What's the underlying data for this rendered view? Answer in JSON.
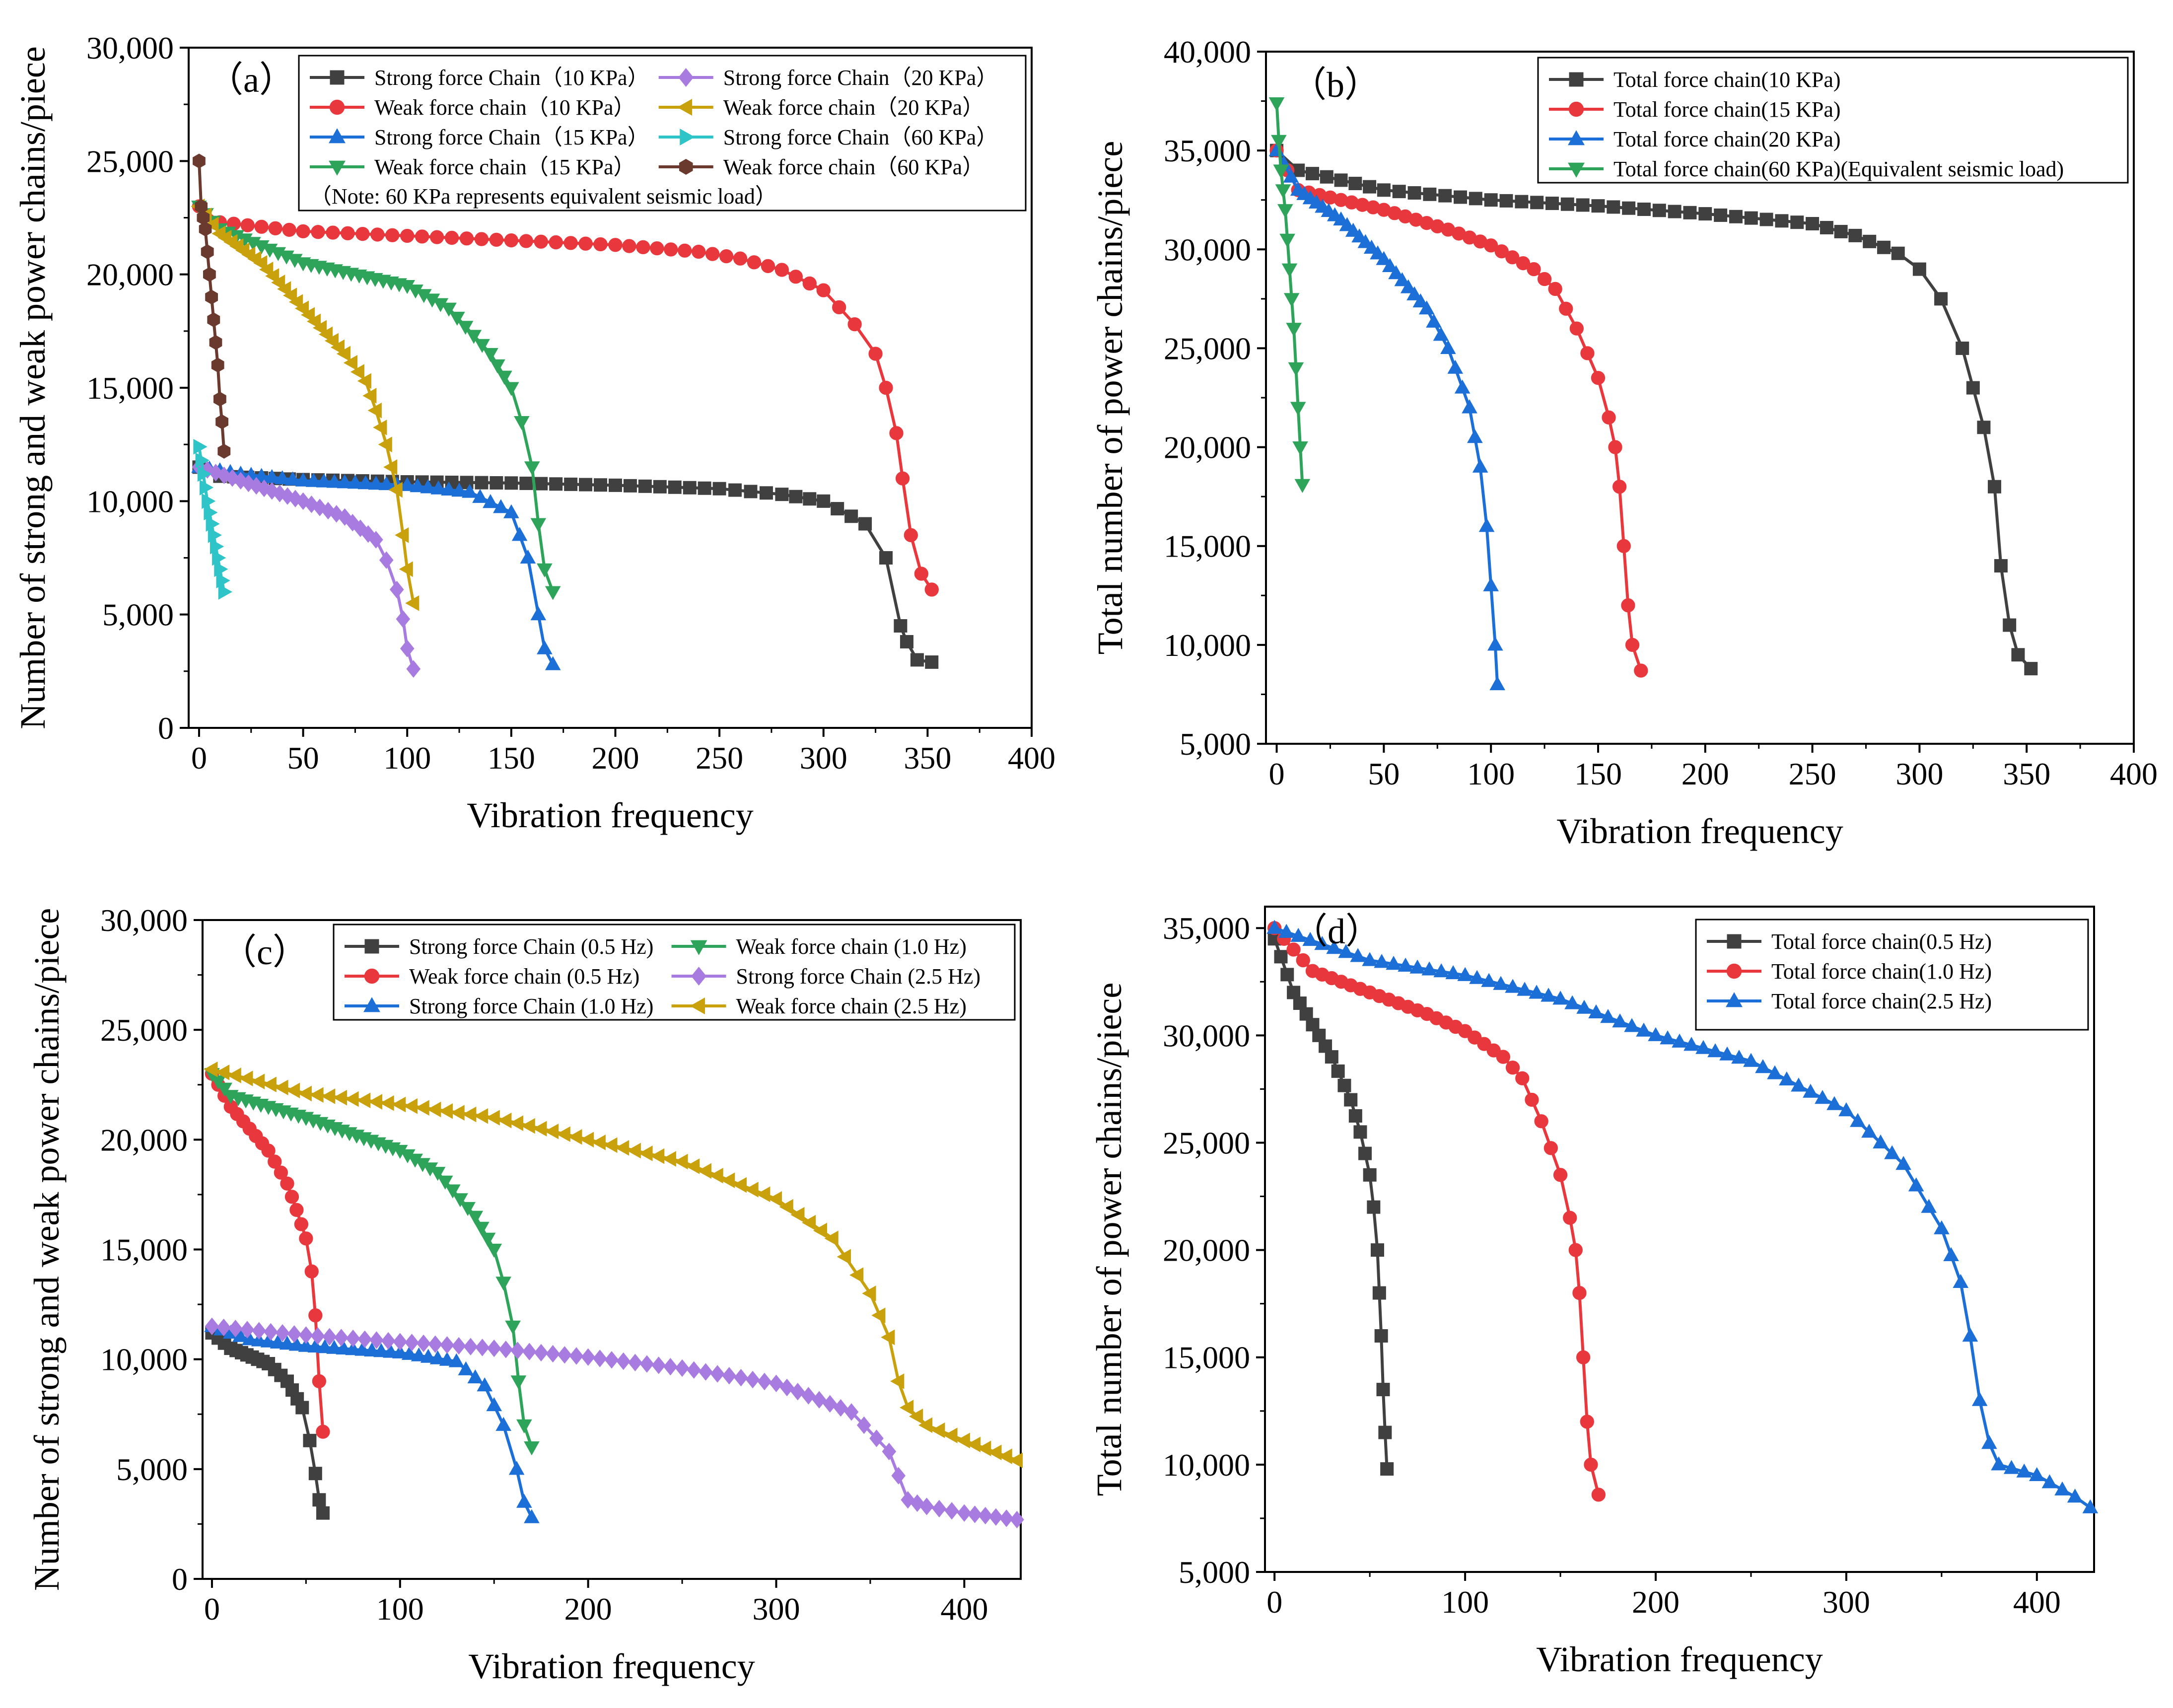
{
  "figure": {
    "panels": [
      "a",
      "b",
      "c",
      "d"
    ]
  },
  "chart_data": [
    {
      "id": "a",
      "type": "line",
      "title": "",
      "panel_label": "（a）",
      "xlabel": "Vibration frequency",
      "ylabel": "Number of strong and weak power chains/piece",
      "xlim": [
        -5,
        400
      ],
      "ylim": [
        0,
        30000
      ],
      "xticks": [
        0,
        50,
        100,
        150,
        200,
        250,
        300,
        350,
        400
      ],
      "yticks": [
        0,
        5000,
        10000,
        15000,
        20000,
        25000,
        30000
      ],
      "xtick_labels": [
        "0",
        "50",
        "100",
        "150",
        "200",
        "250",
        "300",
        "350",
        "400"
      ],
      "ytick_labels": [
        "0",
        "5,000",
        "10,000",
        "15,000",
        "20,000",
        "25,000",
        "30,000"
      ],
      "legend_columns": 2,
      "legend_note": "（Note: 60 KPa represents equivalent seismic load）",
      "series": [
        {
          "name": "Strong force Chain（10 KPa）",
          "color": "#404040",
          "marker": "square",
          "markevery": 7,
          "x": [
            0,
            10,
            50,
            100,
            150,
            200,
            250,
            280,
            300,
            320,
            330,
            337,
            340,
            345,
            352
          ],
          "y": [
            11500,
            11100,
            10950,
            10850,
            10800,
            10700,
            10550,
            10300,
            10000,
            9000,
            7500,
            4500,
            3800,
            3000,
            2900
          ]
        },
        {
          "name": "Weak force chain（10 KPa）",
          "color": "#e8383d",
          "marker": "circle",
          "markevery": 7,
          "x": [
            0,
            10,
            50,
            100,
            150,
            200,
            240,
            260,
            280,
            300,
            315,
            325,
            330,
            335,
            338,
            342,
            347,
            352
          ],
          "y": [
            23000,
            22300,
            21900,
            21700,
            21500,
            21300,
            21000,
            20700,
            20200,
            19300,
            17800,
            16500,
            15000,
            13000,
            11000,
            8500,
            6800,
            6100
          ]
        },
        {
          "name": "Strong force Chain（15 KPa）",
          "color": "#1c6fd6",
          "marker": "triangle-up",
          "markevery": 5,
          "x": [
            0,
            20,
            50,
            100,
            130,
            150,
            158,
            163,
            166,
            170
          ],
          "y": [
            11500,
            11200,
            10900,
            10700,
            10400,
            9500,
            7500,
            5000,
            3500,
            2800
          ]
        },
        {
          "name": "Weak force chain（15 KPa）",
          "color": "#2ea35a",
          "marker": "triangle-down",
          "markevery": 4,
          "x": [
            0,
            10,
            50,
            100,
            120,
            140,
            150,
            155,
            160,
            163,
            166,
            170
          ],
          "y": [
            23000,
            22000,
            20500,
            19500,
            18500,
            16500,
            15000,
            13500,
            11500,
            9000,
            7000,
            6000
          ]
        },
        {
          "name": "Strong force Chain（20 KPa）",
          "color": "#a87be0",
          "marker": "diamond",
          "markevery": 4,
          "x": [
            0,
            20,
            50,
            70,
            85,
            90,
            95,
            98,
            100,
            103
          ],
          "y": [
            11500,
            10900,
            10000,
            9300,
            8300,
            7400,
            6100,
            4800,
            3500,
            2600
          ]
        },
        {
          "name": "Weak force chain（20 KPa）",
          "color": "#c9a10c",
          "marker": "triangle-left",
          "markevery": 3,
          "x": [
            0,
            10,
            30,
            50,
            70,
            80,
            85,
            90,
            95,
            98,
            100,
            103
          ],
          "y": [
            23000,
            21800,
            20500,
            18500,
            16500,
            15300,
            14000,
            12500,
            10500,
            8500,
            7000,
            5500
          ]
        },
        {
          "name": "Strong force Chain（60 KPa）",
          "color": "#2ec4c8",
          "marker": "triangle-right",
          "markevery": 1,
          "x": [
            0,
            2,
            4,
            6,
            8,
            10,
            12
          ],
          "y": [
            12400,
            11200,
            10000,
            9000,
            8000,
            7000,
            6000
          ]
        },
        {
          "name": "Weak force chain（60 KPa）",
          "color": "#6b3a2e",
          "marker": "hexagon",
          "markevery": 1,
          "x": [
            0,
            1,
            2,
            3,
            4,
            5,
            6,
            7,
            8,
            9,
            10,
            11,
            12
          ],
          "y": [
            25000,
            23000,
            22500,
            22000,
            21000,
            20000,
            19000,
            18000,
            17000,
            16000,
            14500,
            13500,
            12200
          ]
        }
      ]
    },
    {
      "id": "b",
      "type": "line",
      "title": "",
      "panel_label": "（b）",
      "xlabel": "Vibration frequency",
      "ylabel": "Total number of power chains/piece",
      "xlim": [
        -5,
        400
      ],
      "ylim": [
        5000,
        40000
      ],
      "xticks": [
        0,
        50,
        100,
        150,
        200,
        250,
        300,
        350,
        400
      ],
      "yticks": [
        5000,
        10000,
        15000,
        20000,
        25000,
        30000,
        35000,
        40000
      ],
      "xtick_labels": [
        "0",
        "50",
        "100",
        "150",
        "200",
        "250",
        "300",
        "350",
        "400"
      ],
      "ytick_labels": [
        "5,000",
        "10,000",
        "15,000",
        "20,000",
        "25,000",
        "30,000",
        "35,000",
        "40,000"
      ],
      "legend_columns": 1,
      "series": [
        {
          "name": "Total force chain(10 KPa)",
          "color": "#404040",
          "marker": "square",
          "markevery": 7,
          "x": [
            0,
            10,
            50,
            100,
            150,
            200,
            250,
            270,
            290,
            300,
            310,
            320,
            325,
            330,
            335,
            338,
            342,
            346,
            352
          ],
          "y": [
            35000,
            34000,
            33000,
            32500,
            32200,
            31800,
            31300,
            30700,
            29800,
            29000,
            27500,
            25000,
            23000,
            21000,
            18000,
            14000,
            11000,
            9500,
            8800
          ]
        },
        {
          "name": "Total force chain(15 KPa)",
          "color": "#e8383d",
          "marker": "circle",
          "markevery": 5,
          "x": [
            0,
            10,
            50,
            80,
            100,
            120,
            130,
            140,
            150,
            155,
            158,
            160,
            162,
            164,
            166,
            170
          ],
          "y": [
            35000,
            33000,
            32000,
            31000,
            30200,
            29000,
            28000,
            26000,
            23500,
            21500,
            20000,
            18000,
            15000,
            12000,
            10000,
            8700
          ]
        },
        {
          "name": "Total force chain(20 KPa)",
          "color": "#1c6fd6",
          "marker": "triangle-up",
          "markevery": 3,
          "x": [
            0,
            10,
            30,
            50,
            70,
            80,
            90,
            95,
            98,
            100,
            102,
            103
          ],
          "y": [
            35000,
            33000,
            31500,
            29500,
            27000,
            25000,
            22000,
            19000,
            16000,
            13000,
            10000,
            8000
          ]
        },
        {
          "name": "Total force chain(60 KPa)(Equivalent seismic load)",
          "color": "#2ea35a",
          "marker": "triangle-down",
          "markevery": 1,
          "x": [
            0,
            1,
            2,
            3,
            4,
            5,
            6,
            7,
            8,
            9,
            10,
            11,
            12
          ],
          "y": [
            37400,
            35500,
            34000,
            33000,
            32000,
            30500,
            29000,
            27500,
            26000,
            24000,
            22000,
            20000,
            18100
          ]
        }
      ]
    },
    {
      "id": "c",
      "type": "line",
      "title": "",
      "panel_label": "（c）",
      "xlabel": "Vibration frequency",
      "ylabel": "Number of strong and weak power chains/piece",
      "xlim": [
        -5,
        430
      ],
      "ylim": [
        0,
        30000
      ],
      "xticks": [
        0,
        100,
        200,
        300,
        400
      ],
      "yticks": [
        0,
        5000,
        10000,
        15000,
        20000,
        25000,
        30000
      ],
      "xtick_labels": [
        "0",
        "100",
        "200",
        "300",
        "400"
      ],
      "ytick_labels": [
        "0",
        "5,000",
        "10,000",
        "15,000",
        "20,000",
        "25,000",
        "30,000"
      ],
      "legend_columns": 2,
      "series": [
        {
          "name": "Strong force Chain (0.5 Hz)",
          "color": "#404040",
          "marker": "square",
          "markevery": 3,
          "x": [
            0,
            10,
            30,
            40,
            48,
            52,
            55,
            57,
            59
          ],
          "y": [
            11200,
            10500,
            9800,
            9000,
            7800,
            6300,
            4800,
            3600,
            3000
          ]
        },
        {
          "name": "Weak force chain (0.5 Hz)",
          "color": "#e8383d",
          "marker": "circle",
          "markevery": 3,
          "x": [
            0,
            10,
            20,
            30,
            40,
            45,
            50,
            53,
            55,
            57,
            59
          ],
          "y": [
            23000,
            21500,
            20500,
            19500,
            18000,
            16800,
            15500,
            14000,
            12000,
            9000,
            6700
          ]
        },
        {
          "name": "Strong force Chain (1.0 Hz)",
          "color": "#1c6fd6",
          "marker": "triangle-up",
          "markevery": 5,
          "x": [
            0,
            20,
            50,
            100,
            130,
            145,
            155,
            162,
            166,
            170
          ],
          "y": [
            11500,
            10900,
            10600,
            10300,
            9900,
            8800,
            7000,
            5000,
            3500,
            2800
          ]
        },
        {
          "name": "Weak force chain (1.0 Hz)",
          "color": "#2ea35a",
          "marker": "triangle-down",
          "markevery": 4,
          "x": [
            0,
            10,
            50,
            100,
            120,
            140,
            150,
            155,
            160,
            163,
            166,
            170
          ],
          "y": [
            23000,
            22000,
            21000,
            19500,
            18500,
            16500,
            15000,
            13500,
            11500,
            9000,
            7000,
            6000
          ]
        },
        {
          "name": "Strong force Chain (2.5 Hz)",
          "color": "#a87be0",
          "marker": "diamond",
          "markevery": 6,
          "x": [
            0,
            50,
            100,
            150,
            200,
            250,
            300,
            340,
            360,
            370,
            380,
            400,
            428
          ],
          "y": [
            11500,
            11100,
            10800,
            10500,
            10100,
            9600,
            8900,
            7600,
            5800,
            3600,
            3300,
            3000,
            2700
          ]
        },
        {
          "name": "Weak force chain (2.5 Hz)",
          "color": "#c9a10c",
          "marker": "triangle-left",
          "markevery": 6,
          "x": [
            0,
            50,
            100,
            150,
            200,
            250,
            300,
            330,
            350,
            360,
            365,
            370,
            380,
            400,
            428
          ],
          "y": [
            23200,
            22100,
            21600,
            21000,
            20000,
            19000,
            17300,
            15500,
            13000,
            11000,
            9000,
            7800,
            7000,
            6300,
            5400
          ]
        }
      ]
    },
    {
      "id": "d",
      "type": "line",
      "title": "",
      "panel_label": "（d）",
      "xlabel": "Vibration frequency",
      "ylabel": "Total number of power chains/piece",
      "xlim": [
        -5,
        430
      ],
      "ylim": [
        5000,
        36000
      ],
      "xticks": [
        0,
        100,
        200,
        300,
        400
      ],
      "yticks": [
        5000,
        10000,
        15000,
        20000,
        25000,
        30000,
        35000
      ],
      "xtick_labels": [
        "0",
        "100",
        "200",
        "300",
        "400"
      ],
      "ytick_labels": [
        "5,000",
        "10,000",
        "15,000",
        "20,000",
        "25,000",
        "30,000",
        "35,000"
      ],
      "legend_columns": 1,
      "series": [
        {
          "name": "Total force chain(0.5 Hz)",
          "color": "#404040",
          "marker": "square",
          "markevery": 3,
          "x": [
            0,
            10,
            20,
            30,
            40,
            45,
            50,
            52,
            54,
            55,
            56,
            57,
            58,
            59
          ],
          "y": [
            34500,
            32000,
            30500,
            29000,
            27000,
            25500,
            23500,
            22000,
            20000,
            18000,
            16000,
            13500,
            11500,
            9800
          ]
        },
        {
          "name": "Total force chain(1.0 Hz)",
          "color": "#e8383d",
          "marker": "circle",
          "markevery": 5,
          "x": [
            0,
            20,
            50,
            80,
            100,
            120,
            130,
            140,
            150,
            155,
            158,
            160,
            162,
            164,
            166,
            170
          ],
          "y": [
            35000,
            33000,
            32000,
            31000,
            30200,
            29000,
            28000,
            26000,
            23500,
            21500,
            20000,
            18000,
            15000,
            12000,
            10000,
            8600
          ]
        },
        {
          "name": "Total force chain(2.5 Hz)",
          "color": "#1c6fd6",
          "marker": "triangle-up",
          "markevery": 6,
          "x": [
            0,
            50,
            100,
            150,
            200,
            250,
            300,
            330,
            350,
            360,
            365,
            370,
            375,
            380,
            400,
            420,
            428
          ],
          "y": [
            35000,
            33500,
            32800,
            31700,
            30000,
            28800,
            26500,
            24000,
            21000,
            18500,
            16000,
            13000,
            11000,
            10000,
            9500,
            8500,
            8000
          ]
        }
      ]
    }
  ]
}
